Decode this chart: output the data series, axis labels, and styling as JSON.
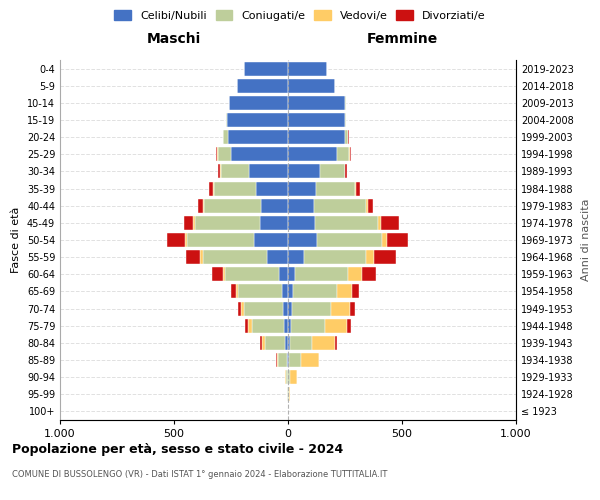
{
  "age_groups": [
    "100+",
    "95-99",
    "90-94",
    "85-89",
    "80-84",
    "75-79",
    "70-74",
    "65-69",
    "60-64",
    "55-59",
    "50-54",
    "45-49",
    "40-44",
    "35-39",
    "30-34",
    "25-29",
    "20-24",
    "15-19",
    "10-14",
    "5-9",
    "0-4"
  ],
  "birth_years": [
    "≤ 1923",
    "1924-1928",
    "1929-1933",
    "1934-1938",
    "1939-1943",
    "1944-1948",
    "1949-1953",
    "1954-1958",
    "1959-1963",
    "1964-1968",
    "1969-1973",
    "1974-1978",
    "1979-1983",
    "1984-1988",
    "1989-1993",
    "1994-1998",
    "1999-2003",
    "2004-2008",
    "2009-2013",
    "2014-2018",
    "2019-2023"
  ],
  "maschi": {
    "celibi": [
      0,
      1,
      2,
      4,
      12,
      18,
      22,
      28,
      38,
      90,
      150,
      125,
      120,
      140,
      170,
      250,
      265,
      268,
      258,
      225,
      192
    ],
    "coniugati": [
      0,
      2,
      8,
      38,
      90,
      140,
      170,
      190,
      238,
      285,
      292,
      285,
      250,
      185,
      125,
      58,
      18,
      5,
      2,
      0,
      0
    ],
    "vedovi": [
      0,
      0,
      2,
      8,
      14,
      18,
      14,
      10,
      10,
      10,
      10,
      5,
      4,
      2,
      2,
      2,
      0,
      0,
      0,
      0,
      0
    ],
    "divorziati": [
      0,
      0,
      0,
      2,
      5,
      12,
      15,
      20,
      48,
      62,
      78,
      42,
      22,
      18,
      10,
      4,
      0,
      0,
      0,
      0,
      0
    ]
  },
  "femmine": {
    "nubili": [
      0,
      2,
      2,
      4,
      8,
      12,
      18,
      22,
      32,
      72,
      125,
      118,
      112,
      122,
      140,
      215,
      250,
      252,
      252,
      205,
      172
    ],
    "coniugate": [
      0,
      2,
      8,
      52,
      98,
      150,
      172,
      192,
      232,
      272,
      288,
      275,
      232,
      172,
      108,
      52,
      14,
      4,
      2,
      0,
      0
    ],
    "vedove": [
      0,
      5,
      28,
      78,
      98,
      98,
      82,
      68,
      62,
      32,
      22,
      14,
      8,
      4,
      4,
      4,
      0,
      0,
      0,
      0,
      0
    ],
    "divorziate": [
      0,
      0,
      2,
      4,
      10,
      18,
      22,
      28,
      62,
      98,
      92,
      78,
      22,
      18,
      8,
      4,
      2,
      0,
      0,
      0,
      0
    ]
  },
  "colors": {
    "celibi": "#4472C4",
    "coniugati": "#BECE9B",
    "vedovi": "#FFCC66",
    "divorziati": "#CC1111"
  },
  "title": "Popolazione per età, sesso e stato civile - 2024",
  "subtitle": "COMUNE DI BUSSOLENGO (VR) - Dati ISTAT 1° gennaio 2024 - Elaborazione TUTTITALIA.IT",
  "ylabel_left": "Fasce di età",
  "ylabel_right": "Anni di nascita",
  "xlim": 1000,
  "maschi_label": "Maschi",
  "femmine_label": "Femmine"
}
